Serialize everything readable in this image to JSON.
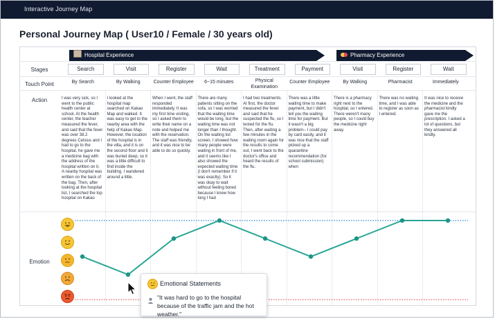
{
  "window": {
    "title": "Interactive Journey Map"
  },
  "page": {
    "title": "Personal Journey Map ( User10 / Female / 30 years old)"
  },
  "row_labels": {
    "stages": "Stages",
    "touch_point": "Touch Point",
    "action": "Action",
    "emotion": "Emotion"
  },
  "phases": {
    "hospital": "Hospital Experience",
    "pharmacy": "Pharmacy Experience"
  },
  "columns": [
    {
      "stage": "Search",
      "touch_point": "By Search",
      "action": "I was very sick, so I went to the public health center at school. At the health center, the teacher measured the fever, and said that the fever was over 38.2 degrees Celsius and I had to go to the hospital, he gave me a medicine bag with the address of the hospital written on it. A nearby hospital was written on the back of the bag. Then, after looking at the hospital list, I searched the top hospital on Kakao"
    },
    {
      "stage": "Visit",
      "touch_point": "By Walking",
      "action": "I looked at the hospital map searched on Kakao Map and walked. It was easy to get to the nearby area with the help of Kakao Map. However, the location of the hospital is in the villa, and it is on the second floor and it was buried deep, so it was a little difficult to find inside the building. I wandered around a little."
    },
    {
      "stage": "Register",
      "touch_point": "Counter Employee",
      "action": "When I went, the staff responded immediately. It was my first time visiting, so I asked them to write their name on a note and helped me with the reservation. The staff was friendly, and it was nice to be able to do so quickly."
    },
    {
      "stage": "Wait",
      "touch_point": "6~15 minutes",
      "action": "There are many patients sitting on the sofa, so I was worried that the waiting time would be long, but the waiting time was not longer than I thought. On the waiting list screen, I showed how many people were waiting in front of me, and it seems like I also showed the expected waiting time (I don't remember if it was exactly). So it was okay to wait without feeling bored because I knew how long I had"
    },
    {
      "stage": "Treatment",
      "touch_point": "Physical Examination",
      "action": "I had two treatments. At first, the doctor measured the fever and said that he suspected the flu, so I tested for the flu. Then, after waiting a few minutes in the waiting room again for the results to come out, I went back to the doctor's office and heard the results of the flu."
    },
    {
      "stage": "Payment",
      "touch_point": "Counter Employee",
      "action": "There was a little waiting time to make payment, but I didn't tell you the waiting time for payment. But it wasn't a big problem-- I could pay by card easily, and it was nice that the staff picked up a quarantine recommendation (for school submission) when"
    },
    {
      "stage": "Visit",
      "touch_point": "By Walking",
      "action": "There is a pharmacy right next to the hospital, so I entered. There weren't many people, so I could buy the medicine right away."
    },
    {
      "stage": "Register",
      "touch_point": "Pharmacist",
      "action": "There was no waiting time, and I was able to register as soon as I entered."
    },
    {
      "stage": "Wait",
      "touch_point": "Immediately",
      "action": "It was nice to receive the medicine and the pharmacist kindly gave me the prescription. I asked a lot of questions, but they answered all kindly."
    }
  ],
  "emotion_levels": [
    "very-happy",
    "happy",
    "neutral",
    "sad",
    "very-sad"
  ],
  "emotion_scores": [
    3,
    2,
    4,
    5,
    4,
    3,
    4,
    5,
    5
  ],
  "colors": {
    "line": "#27a594",
    "node": "#1e9585",
    "top_dotted": "#2f7fd4",
    "bottom_dotted": "#e25b5b",
    "banner": "#101a30"
  },
  "tooltip": {
    "title": "Emotional Statements",
    "text": "\"It was hard to go to the hospital because of the traffic jam and the hot weather.\""
  }
}
